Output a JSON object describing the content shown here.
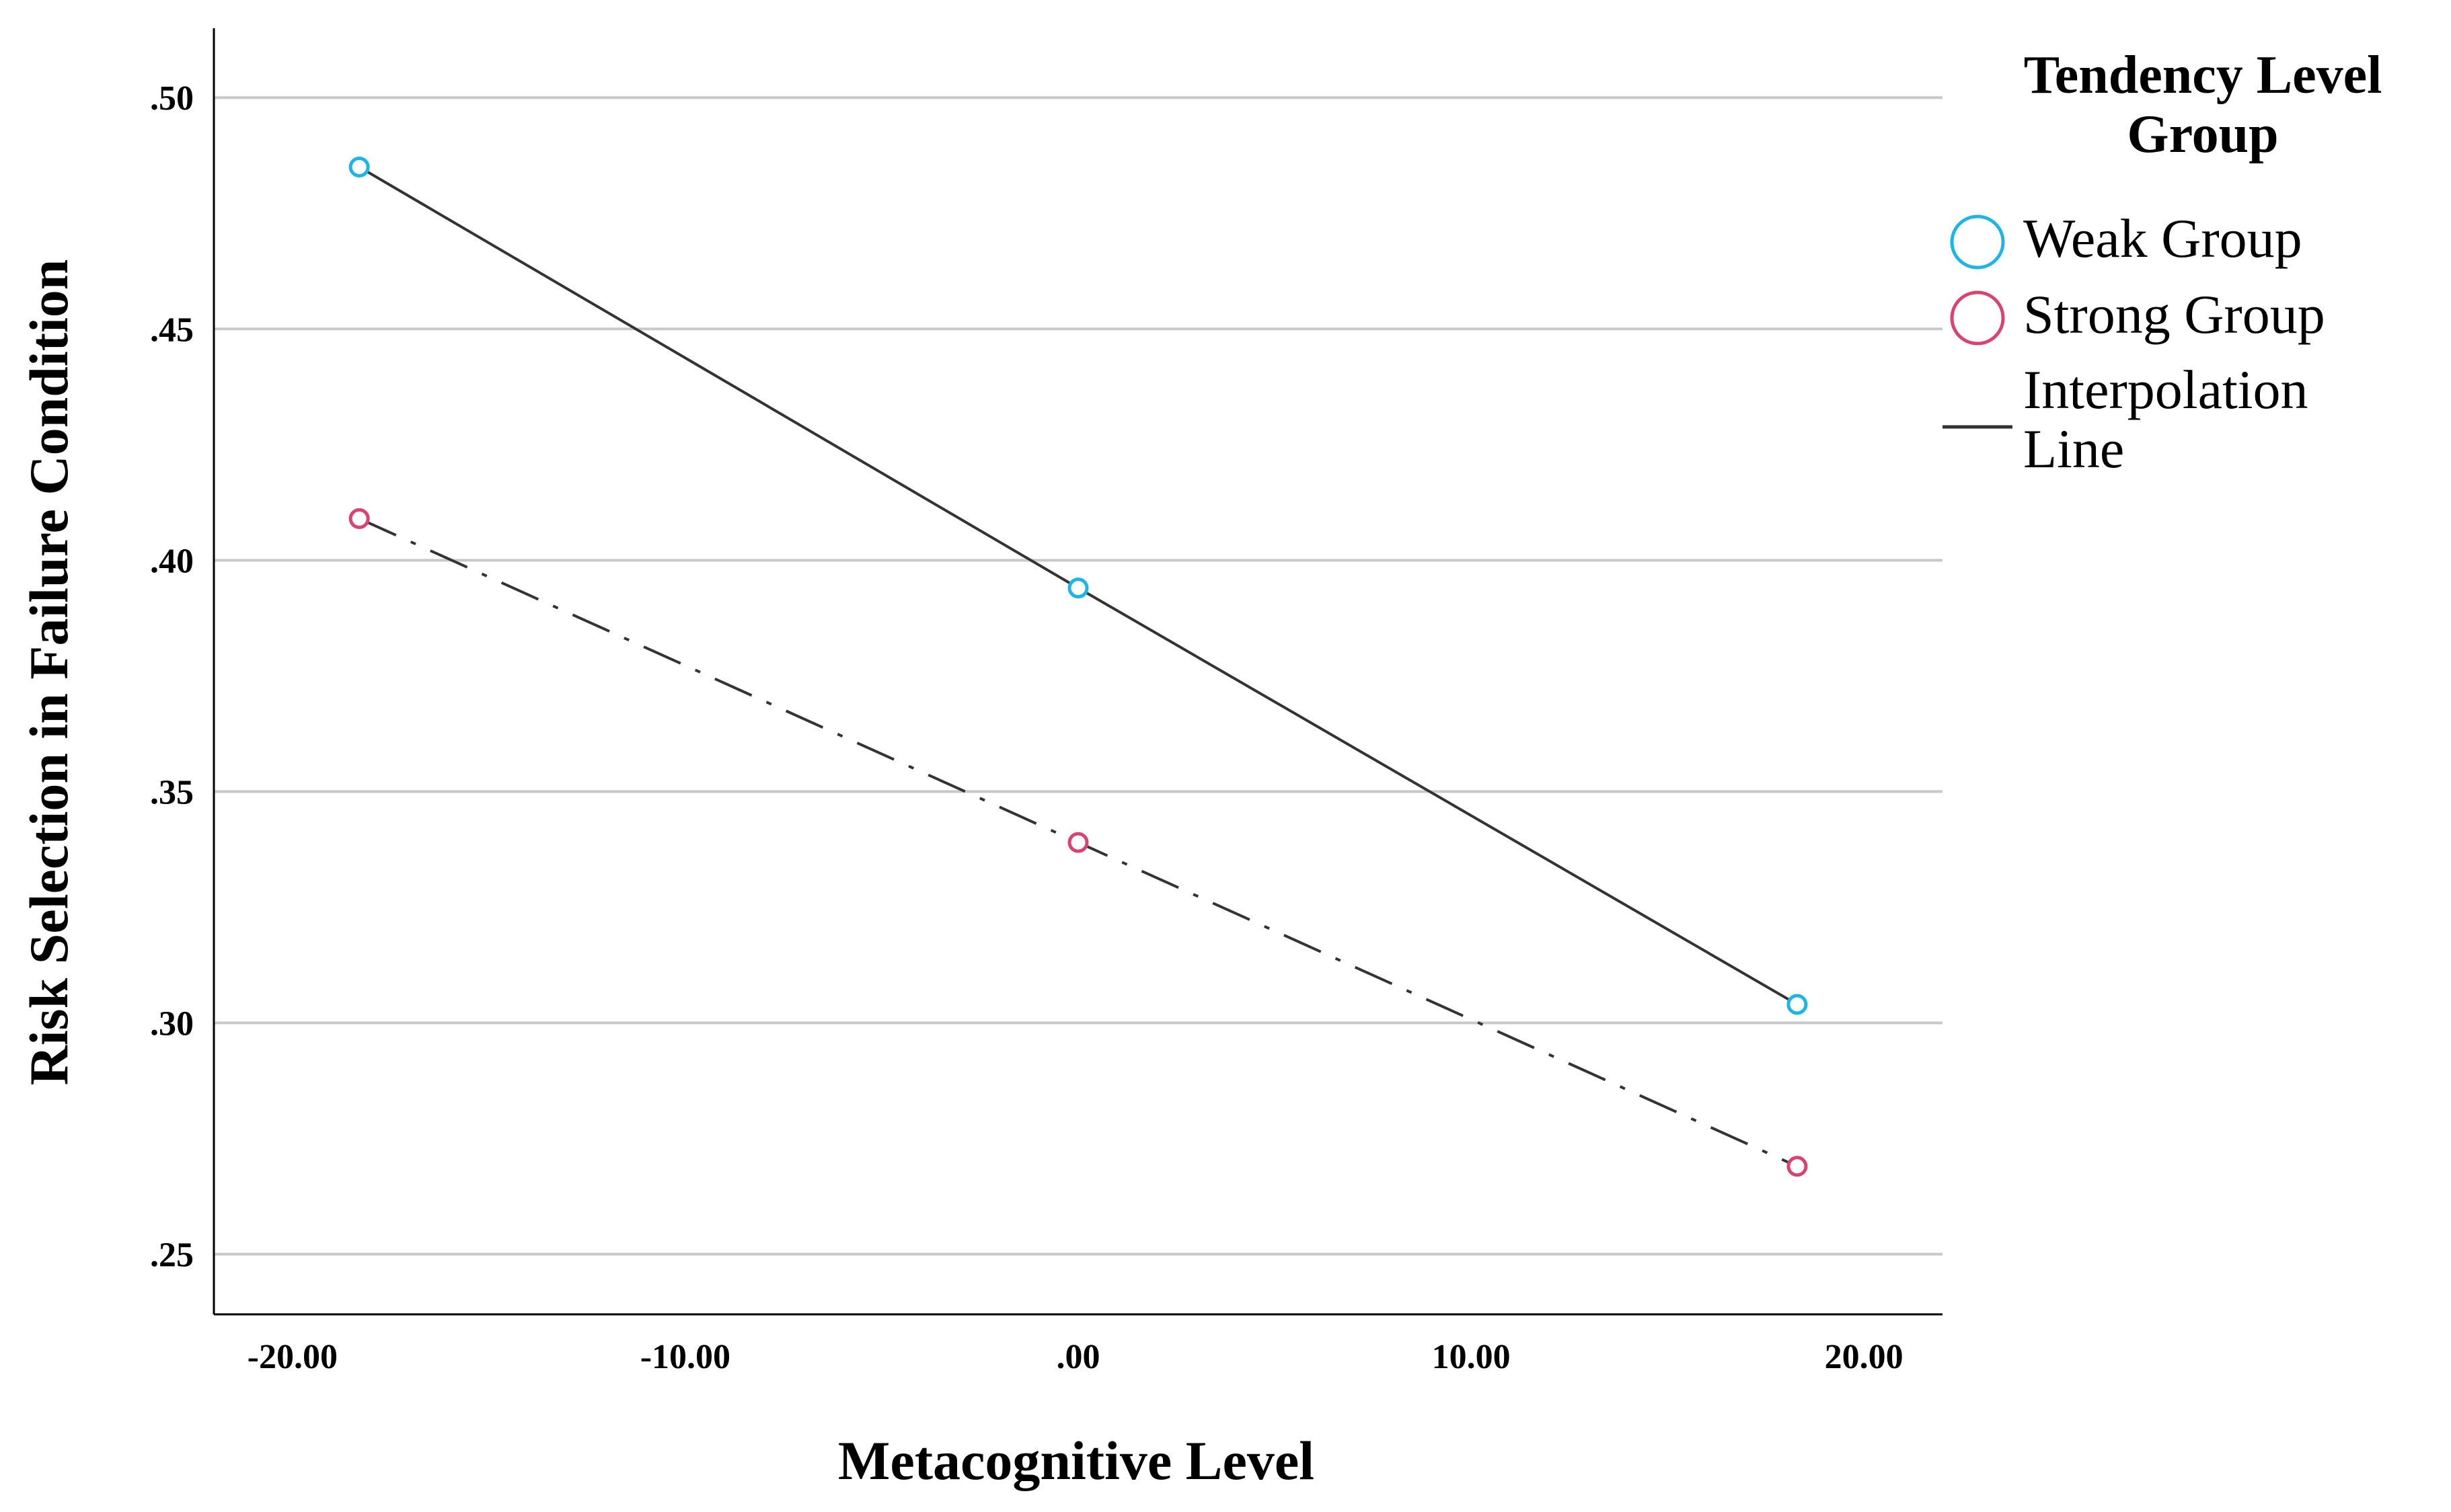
{
  "chart_data": {
    "type": "line",
    "title": "",
    "xlabel": "Metacognitive Level",
    "ylabel": "Risk Selection in Failure Condition",
    "xlim": [
      -22,
      22
    ],
    "ylim": [
      0.237,
      0.515
    ],
    "x_ticks": [
      -20,
      -10,
      0,
      10,
      20
    ],
    "x_tick_labels": [
      "-20.00",
      "-10.00",
      ".00",
      "10.00",
      "20.00"
    ],
    "y_ticks": [
      0.25,
      0.3,
      0.35,
      0.4,
      0.45,
      0.5
    ],
    "y_tick_labels": [
      ".25",
      ".30",
      ".35",
      ".40",
      ".45",
      ".50"
    ],
    "grid": "horizontal",
    "legend": {
      "title_lines": [
        "Tendency Level",
        "Group"
      ],
      "placement": "right",
      "items": [
        {
          "label_lines": [
            "Weak Group"
          ],
          "marker": "circle",
          "color": "#1eb4e6"
        },
        {
          "label_lines": [
            "Strong Group"
          ],
          "marker": "circle",
          "color": "#d9436f"
        },
        {
          "label_lines": [
            "Interpolation",
            "Line"
          ],
          "marker": "line",
          "color": "#333333"
        }
      ]
    },
    "series": [
      {
        "name": "Weak Group",
        "x": [
          -18.3,
          0,
          18.3
        ],
        "y": [
          0.485,
          0.394,
          0.304
        ],
        "marker_color": "#1eb4e6",
        "line_color": "#333333",
        "line_style": "solid"
      },
      {
        "name": "Strong Group",
        "x": [
          -18.3,
          0,
          18.3
        ],
        "y": [
          0.409,
          0.339,
          0.269
        ],
        "marker_color": "#d9436f",
        "line_color": "#333333",
        "line_style": "dashdot"
      }
    ]
  }
}
